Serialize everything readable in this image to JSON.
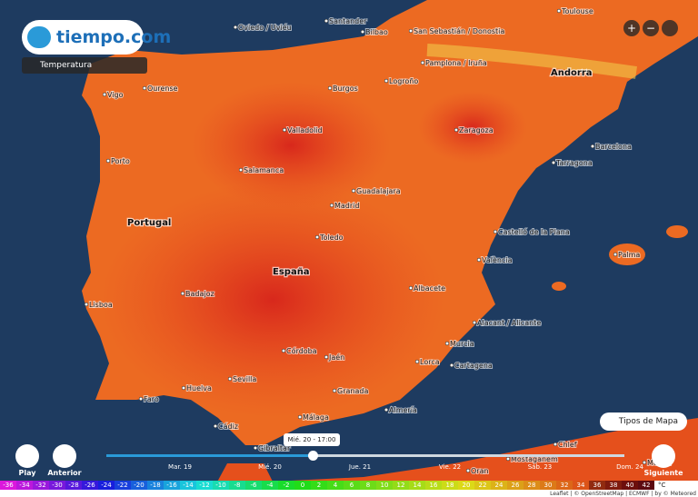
{
  "header": {
    "logo": "tiempo.com",
    "layer": "Temperatura"
  },
  "controls": {
    "zoom_in": "+",
    "zoom_out": "−",
    "map_types": "Tipos de Mapa",
    "play": "Play",
    "previous": "Anterior",
    "next": "Siguiente"
  },
  "timeline": {
    "current": "Mié. 20 - 17:00",
    "days": [
      "Mar. 19",
      "Mié. 20",
      "Jue. 21",
      "Vie. 22",
      "Sáb. 23",
      "Dom. 24"
    ]
  },
  "countries": [
    "Portugal",
    "España",
    "Andorra"
  ],
  "cities": [
    "Oviedo / Uviéu",
    "Santander",
    "Bilbao",
    "San Sebastián / Donostia",
    "Pamplona / Iruña",
    "Toulouse",
    "Ourense",
    "Vigo",
    "Burgos",
    "Logroño",
    "Zaragoza",
    "Barcelona",
    "Tarragona",
    "Valladolid",
    "Porto",
    "Salamanca",
    "Guadalajara",
    "Madrid",
    "Toledo",
    "Castelló de la Plana",
    "València",
    "Palma",
    "Badajoz",
    "Albacete",
    "Lisboa",
    "Alacant / Alicante",
    "Murcia",
    "Córdoba",
    "Jaén",
    "Lorca",
    "Cartagena",
    "Sevilla",
    "Huelva",
    "Faro",
    "Granada",
    "Almería",
    "Málaga",
    "Cádiz",
    "Gibraltar",
    "Oran",
    "Mostaganem",
    "Chlef",
    "Médéa"
  ],
  "legend": {
    "values": [
      -36,
      -34,
      -32,
      -30,
      -28,
      -26,
      -24,
      -22,
      -20,
      -18,
      -16,
      -14,
      -12,
      -10,
      -8,
      -6,
      -4,
      -2,
      0,
      2,
      4,
      6,
      8,
      10,
      12,
      14,
      16,
      18,
      20,
      22,
      24,
      26,
      28,
      30,
      32,
      34,
      36,
      38,
      40,
      42
    ],
    "unit": "°C"
  },
  "attribution": "Leaflet | © OpenStreetMap | ECMWF | by © Meteored"
}
